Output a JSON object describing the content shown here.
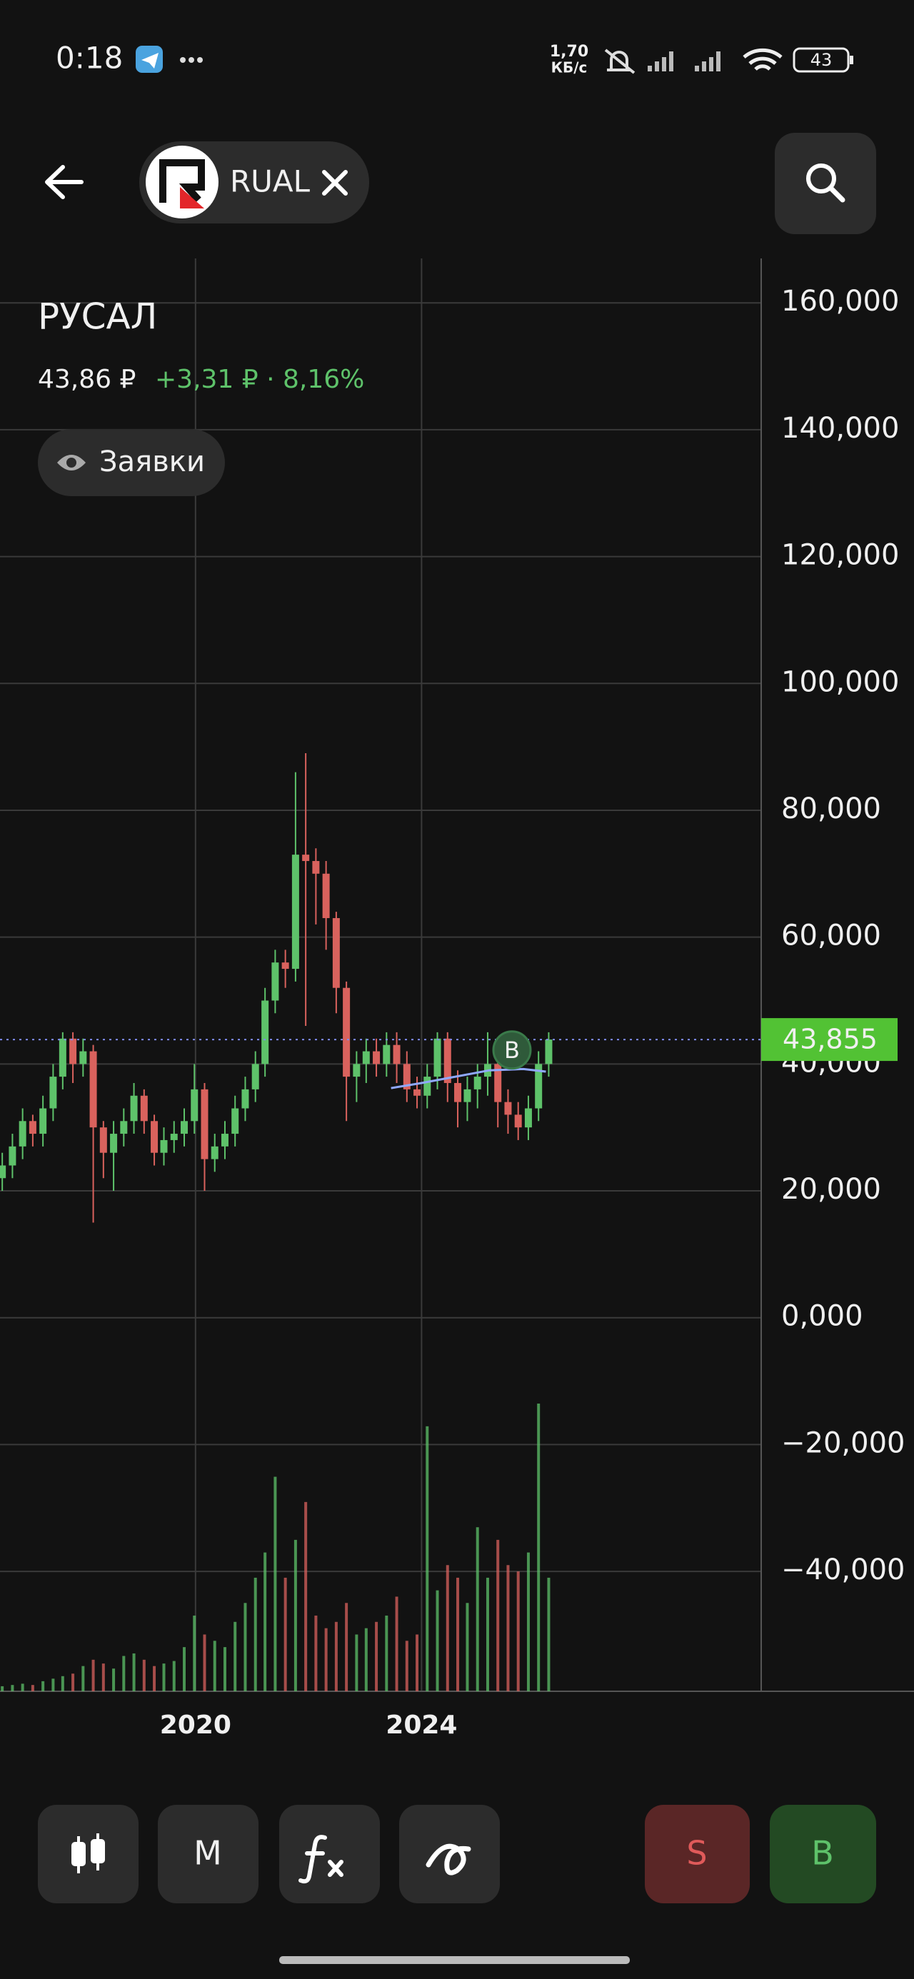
{
  "status_bar": {
    "time": "0:18",
    "speed_value": "1,70",
    "speed_unit": "КБ/с",
    "battery": "43"
  },
  "header": {
    "ticker": "RUAL"
  },
  "instrument": {
    "name": "РУСАЛ",
    "price": "43,86 ₽",
    "change": "+3,31 ₽ · 8,16%",
    "orders_button": "Заявки"
  },
  "chart_data": {
    "type": "candlestick",
    "xlim": [
      2016.54,
      2030.01
    ],
    "xticks": [
      2020,
      2024
    ],
    "ylim": [
      -58.9,
      167
    ],
    "yticks": [
      {
        "value": 160,
        "label": "160,000"
      },
      {
        "value": 140,
        "label": "140,000"
      },
      {
        "value": 120,
        "label": "120,000"
      },
      {
        "value": 100,
        "label": "100,000"
      },
      {
        "value": 80,
        "label": "80,000"
      },
      {
        "value": 60,
        "label": "60,000"
      },
      {
        "value": 40,
        "label": "40,000"
      },
      {
        "value": 20,
        "label": "20,000"
      },
      {
        "value": 0,
        "label": "0,000"
      },
      {
        "value": -20,
        "label": "−20,000"
      },
      {
        "value": -40,
        "label": "−40,000"
      }
    ],
    "grid": true,
    "up_color": "#5ec26a",
    "down_color": "#d9625d",
    "x": [
      2016.58,
      2016.76,
      2016.94,
      2017.12,
      2017.3,
      2017.48,
      2017.65,
      2017.83,
      2018.01,
      2018.19,
      2018.37,
      2018.55,
      2018.73,
      2018.91,
      2019.09,
      2019.27,
      2019.44,
      2019.62,
      2019.8,
      2019.98,
      2020.16,
      2020.34,
      2020.52,
      2020.7,
      2020.88,
      2021.06,
      2021.23,
      2021.41,
      2021.59,
      2021.77,
      2021.95,
      2022.13,
      2022.31,
      2022.49,
      2022.67,
      2022.85,
      2023.02,
      2023.2,
      2023.38,
      2023.56,
      2023.74,
      2023.92,
      2024.1,
      2024.28,
      2024.46,
      2024.64,
      2024.81,
      2024.99,
      2025.17,
      2025.35,
      2025.53,
      2025.71,
      2025.89,
      2026.07,
      2026.25
    ],
    "open": [
      22,
      24,
      27,
      31,
      29,
      33,
      38,
      44,
      40,
      42,
      30,
      26,
      29,
      31,
      35,
      31,
      26,
      28,
      29,
      31,
      36,
      25,
      27,
      29,
      33,
      36,
      40,
      50,
      56,
      55,
      73,
      72,
      70,
      63,
      52,
      38,
      40,
      42,
      40,
      43,
      40,
      36,
      35,
      38,
      44,
      37,
      34,
      36,
      38,
      40,
      34,
      32,
      30,
      33,
      40
    ],
    "high": [
      26,
      29,
      33,
      32,
      35,
      40,
      45,
      45,
      44,
      43,
      31,
      31,
      33,
      37,
      36,
      32,
      30,
      31,
      33,
      40,
      37,
      29,
      31,
      35,
      38,
      42,
      52,
      58,
      58,
      86,
      89,
      74,
      72,
      64,
      53,
      42,
      44,
      44,
      45,
      45,
      42,
      38,
      40,
      45,
      45,
      39,
      38,
      40,
      45,
      41,
      36,
      34,
      35,
      42,
      45
    ],
    "low": [
      20,
      22,
      25,
      27,
      27,
      31,
      36,
      37,
      38,
      15,
      22,
      20,
      27,
      29,
      29,
      24,
      24,
      26,
      27,
      29,
      20,
      23,
      25,
      27,
      31,
      34,
      38,
      48,
      52,
      53,
      46,
      62,
      58,
      48,
      31,
      34,
      37,
      38,
      38,
      37,
      34,
      33,
      33,
      36,
      34,
      30,
      31,
      33,
      35,
      30,
      29,
      28,
      28,
      31,
      38
    ],
    "close": [
      24,
      27,
      31,
      29,
      33,
      38,
      44,
      40,
      42,
      30,
      26,
      29,
      31,
      35,
      31,
      26,
      28,
      29,
      31,
      36,
      25,
      27,
      29,
      33,
      36,
      40,
      50,
      56,
      55,
      73,
      72,
      70,
      63,
      52,
      38,
      40,
      42,
      40,
      43,
      40,
      36,
      35,
      38,
      44,
      37,
      34,
      36,
      38,
      40,
      34,
      32,
      30,
      33,
      40,
      43.86
    ],
    "volume": [
      4,
      5,
      6,
      5,
      8,
      10,
      12,
      14,
      20,
      25,
      22,
      18,
      28,
      30,
      25,
      20,
      22,
      24,
      35,
      60,
      45,
      40,
      35,
      55,
      70,
      90,
      110,
      170,
      90,
      120,
      150,
      60,
      50,
      55,
      70,
      45,
      50,
      55,
      60,
      75,
      40,
      45,
      210,
      80,
      100,
      90,
      70,
      130,
      90,
      120,
      100,
      95,
      110,
      228,
      90
    ],
    "price_line": {
      "value": 43.855,
      "label": "43,855",
      "color": "#52c234"
    },
    "moving_average": {
      "color": "#8fa8ff",
      "x": [
        2023.46,
        2024.0,
        2024.6,
        2025.2,
        2025.8,
        2026.2
      ],
      "values": [
        36.2,
        37.0,
        38.0,
        39.0,
        39.2,
        38.8
      ]
    },
    "markers": [
      {
        "x": 2025.6,
        "y": 42.2,
        "label": "B"
      }
    ]
  },
  "toolbar": {
    "period": "M",
    "sell": "S",
    "buy": "B"
  }
}
